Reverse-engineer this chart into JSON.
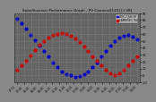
{
  "title": "Solar/Inverter Performance Graph - PV Camera/[123] [+38]",
  "legend_labels": [
    "HOC-7 JUN 38",
    "CAPRESSO 780"
  ],
  "legend_colors": [
    "#0000cc",
    "#cc0000"
  ],
  "background_color": "#888888",
  "plot_bg_color": "#666666",
  "grid_color": "#999999",
  "ylim": [
    -10,
    90
  ],
  "yticks": [
    -10,
    0,
    10,
    20,
    30,
    40,
    50,
    60,
    70,
    80,
    90
  ],
  "blue_x": [
    0,
    1,
    2,
    3,
    4,
    5,
    6,
    7,
    8,
    9,
    10,
    11,
    12,
    13,
    14,
    15,
    16,
    17,
    18,
    19,
    20,
    21,
    22,
    23,
    24,
    25,
    26,
    27
  ],
  "blue_y": [
    82,
    75,
    67,
    59,
    51,
    43,
    35,
    27,
    19,
    12,
    6,
    2,
    0,
    -2,
    -1,
    2,
    6,
    12,
    19,
    27,
    35,
    43,
    49,
    54,
    57,
    58,
    56,
    52
  ],
  "red_x": [
    0,
    1,
    2,
    3,
    4,
    5,
    6,
    7,
    8,
    9,
    10,
    11,
    12,
    13,
    14,
    15,
    16,
    17,
    18,
    19,
    20,
    21,
    22,
    23,
    24,
    25,
    26,
    27
  ],
  "red_y": [
    8,
    14,
    21,
    29,
    37,
    44,
    50,
    55,
    58,
    60,
    61,
    60,
    57,
    53,
    48,
    42,
    35,
    28,
    21,
    14,
    8,
    3,
    1,
    3,
    8,
    14,
    21,
    28
  ],
  "xtick_labels": [
    "07:11",
    "07:45",
    "08:25",
    "09:05",
    "09:45",
    "10:25",
    "11:05",
    "11:45",
    "12:25",
    "13:05",
    "13:45",
    "14:25",
    "15:05",
    "15:45",
    "16:25",
    "17:05",
    "17:45",
    "18:25"
  ],
  "xtick_count": 18,
  "marker_size": 2.0,
  "title_fontsize": 3.0,
  "tick_fontsize": 2.5
}
